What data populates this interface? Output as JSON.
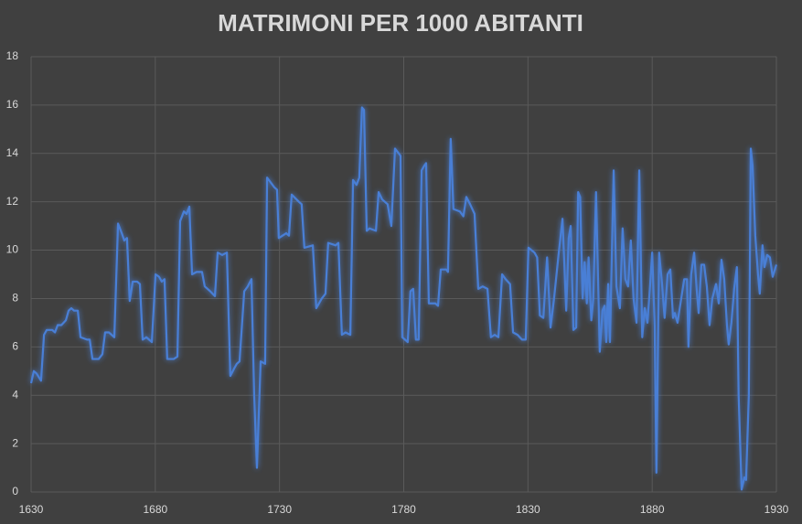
{
  "chart_data": {
    "type": "line",
    "title": "MATRIMONI PER 1000 ABITANTI",
    "x": [
      1630,
      1631.1,
      1632.2,
      1634,
      1635.2,
      1636.3,
      1638.5,
      1639.6,
      1640.7,
      1642.2,
      1644,
      1645.1,
      1646.2,
      1647.3,
      1648.8,
      1649.9,
      1652.5,
      1653.6,
      1654.7,
      1657.2,
      1658.7,
      1659.8,
      1661.3,
      1663.5,
      1665,
      1666.5,
      1667.5,
      1668.6,
      1669.7,
      1670.9,
      1672.7,
      1673.8,
      1674.9,
      1676.4,
      1678.6,
      1680.1,
      1681.5,
      1682.6,
      1683.7,
      1684.8,
      1687.4,
      1688.9,
      1690,
      1691.5,
      1692.6,
      1693.7,
      1694.8,
      1696.6,
      1698.8,
      1699.9,
      1702.1,
      1704,
      1705.1,
      1706.9,
      1708.8,
      1710.2,
      1711.7,
      1712.8,
      1713.9,
      1715.8,
      1717.2,
      1718.7,
      1719.8,
      1720.9,
      1722.4,
      1724.2,
      1725,
      1727.9,
      1729,
      1729.7,
      1732.7,
      1733.8,
      1734.9,
      1737.8,
      1738.9,
      1740,
      1743.4,
      1744.8,
      1747,
      1748.5,
      1749.6,
      1752.6,
      1753.7,
      1755.1,
      1756.6,
      1758.5,
      1759.6,
      1761,
      1762.1,
      1763.2,
      1764,
      1765.1,
      1766.2,
      1768.8,
      1769.9,
      1771.3,
      1773.5,
      1775,
      1776.5,
      1778,
      1778.7,
      1779.4,
      1781.6,
      1782.7,
      1783.8,
      1784.9,
      1786,
      1787.2,
      1788.3,
      1789,
      1790.1,
      1792.7,
      1793.8,
      1794.9,
      1797.1,
      1797.8,
      1798.9,
      1800,
      1802.6,
      1804,
      1805.2,
      1806.7,
      1808.5,
      1810,
      1811.8,
      1813.7,
      1815.1,
      1816.6,
      1818.1,
      1819.6,
      1821,
      1822.8,
      1824,
      1825.8,
      1827.6,
      1829.1,
      1830.2,
      1832.6,
      1833.7,
      1834.8,
      1836.2,
      1837.7,
      1839.1,
      1840.5,
      1842.3,
      1843.9,
      1845.4,
      1846.4,
      1847.2,
      1848.3,
      1849.4,
      1850.2,
      1851,
      1852,
      1852.8,
      1853.7,
      1854.4,
      1855.5,
      1856.3,
      1857.4,
      1858.9,
      1860,
      1860.8,
      1861.5,
      1862.3,
      1863,
      1864.5,
      1865.6,
      1867,
      1868.1,
      1869.2,
      1870.3,
      1871.4,
      1872.5,
      1873.7,
      1874.8,
      1876,
      1877,
      1878.1,
      1879.2,
      1880,
      1881,
      1881.7,
      1882.8,
      1883.9,
      1885,
      1886.2,
      1887.3,
      1888.4,
      1889.1,
      1890.2,
      1891.7,
      1892.9,
      1894,
      1894.6,
      1895.7,
      1896.9,
      1897.9,
      1898.7,
      1899.8,
      1900.9,
      1902,
      1903.1,
      1904.2,
      1905.7,
      1906.8,
      1907.9,
      1909,
      1910.1,
      1910.8,
      1911.9,
      1913,
      1914.1,
      1914.8,
      1916,
      1917.1,
      1917.8,
      1918.9,
      1919.7,
      1920.4,
      1921.5,
      1922.6,
      1923.3,
      1924.4,
      1925.2,
      1926.3,
      1927.4,
      1928.5,
      1930
    ],
    "values": [
      4.5,
      5.0,
      4.9,
      4.6,
      6.5,
      6.7,
      6.7,
      6.6,
      6.9,
      6.9,
      7.1,
      7.5,
      7.6,
      7.5,
      7.5,
      6.4,
      6.3,
      6.3,
      5.5,
      5.5,
      5.7,
      6.6,
      6.6,
      6.4,
      11.1,
      10.7,
      10.4,
      10.5,
      7.9,
      8.7,
      8.7,
      8.6,
      6.3,
      6.4,
      6.2,
      9.0,
      8.9,
      8.7,
      8.8,
      5.5,
      5.5,
      5.6,
      11.2,
      11.6,
      11.5,
      11.8,
      9.0,
      9.1,
      9.1,
      8.5,
      8.3,
      8.1,
      9.9,
      9.8,
      9.9,
      4.8,
      5.1,
      5.3,
      5.4,
      8.3,
      8.5,
      8.8,
      4.0,
      1.0,
      5.4,
      5.3,
      13.0,
      12.6,
      12.5,
      10.5,
      10.7,
      10.6,
      12.3,
      12.0,
      11.9,
      10.1,
      10.2,
      7.6,
      8.0,
      8.2,
      10.3,
      10.2,
      10.3,
      6.5,
      6.6,
      6.5,
      12.9,
      12.7,
      13.0,
      15.9,
      15.8,
      10.8,
      10.9,
      10.8,
      12.4,
      12.1,
      11.9,
      11.0,
      14.2,
      14.0,
      13.9,
      6.4,
      6.2,
      8.3,
      8.4,
      6.3,
      6.3,
      13.3,
      13.5,
      13.6,
      7.8,
      7.8,
      7.7,
      9.2,
      9.2,
      9.1,
      14.6,
      11.7,
      11.6,
      11.4,
      12.2,
      11.9,
      11.5,
      8.4,
      8.5,
      8.4,
      6.4,
      6.5,
      6.4,
      9.0,
      8.8,
      8.6,
      6.6,
      6.5,
      6.3,
      6.3,
      10.1,
      9.9,
      9.7,
      7.3,
      7.2,
      9.7,
      6.8,
      8.0,
      9.8,
      11.3,
      7.5,
      10.5,
      11.0,
      6.7,
      6.8,
      12.4,
      12.2,
      8.0,
      9.5,
      7.8,
      9.7,
      7.1,
      8.0,
      12.4,
      5.8,
      7.5,
      7.7,
      6.2,
      8.6,
      6.2,
      13.3,
      8.5,
      7.6,
      10.9,
      8.8,
      8.5,
      10.4,
      8.0,
      7.0,
      13.3,
      6.4,
      7.6,
      7.0,
      8.6,
      9.9,
      6.9,
      0.8,
      9.9,
      8.7,
      7.2,
      9.0,
      9.2,
      7.2,
      7.4,
      7.0,
      8.0,
      8.8,
      8.8,
      6.0,
      9.0,
      9.9,
      8.4,
      7.4,
      9.4,
      9.4,
      8.5,
      6.9,
      8.0,
      8.6,
      7.8,
      9.6,
      8.8,
      6.9,
      6.1,
      7.0,
      8.4,
      9.3,
      4.0,
      0.1,
      0.6,
      0.5,
      4.0,
      14.2,
      13.5,
      10.6,
      9.0,
      8.2,
      10.2,
      9.3,
      9.8,
      9.7,
      8.9,
      9.4
    ],
    "color": "#4a7fd6",
    "xlim": [
      1630,
      1930
    ],
    "xticks": [
      1630,
      1680,
      1730,
      1780,
      1830,
      1880,
      1930
    ],
    "ylim": [
      0,
      18
    ],
    "yticks": [
      0,
      2,
      4,
      6,
      8,
      10,
      12,
      14,
      16,
      18
    ],
    "grid": true
  }
}
